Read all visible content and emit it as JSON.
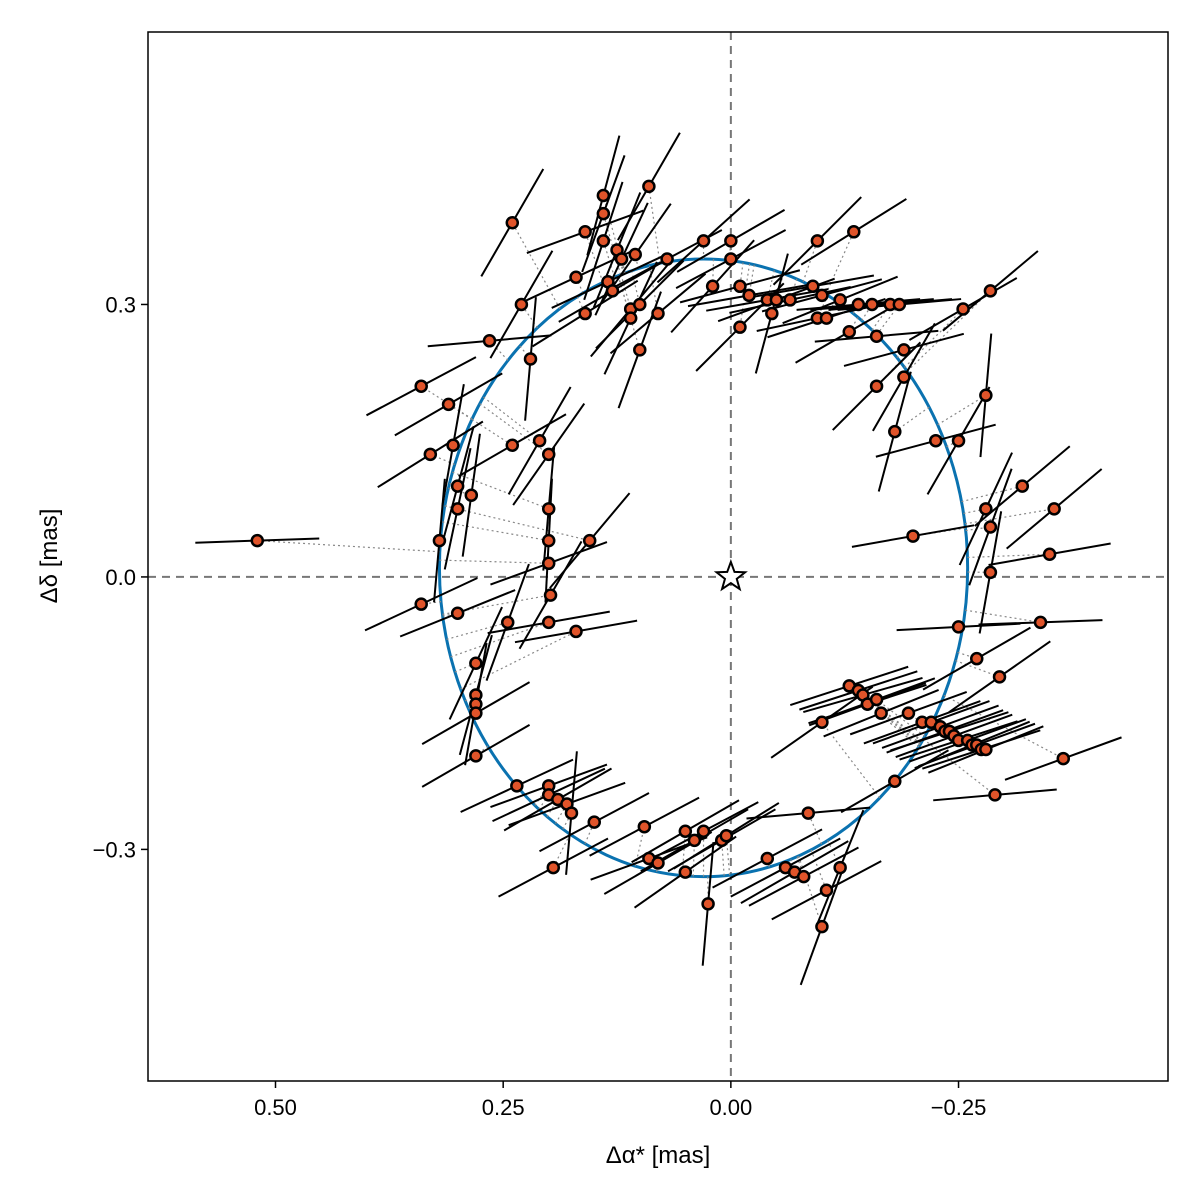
{
  "chart_data": {
    "type": "scatter",
    "title": "",
    "xlabel": "Δα* [mas]",
    "ylabel": "Δδ [mas]",
    "x_reversed": true,
    "xlim": [
      0.64,
      -0.48
    ],
    "ylim": [
      -0.555,
      0.6
    ],
    "x_ticks": [
      {
        "value": 0.5,
        "label": "0.50"
      },
      {
        "value": 0.25,
        "label": "0.25"
      },
      {
        "value": 0.0,
        "label": "0.00"
      },
      {
        "value": -0.25,
        "label": "−0.25"
      }
    ],
    "y_ticks": [
      {
        "value": 0.3,
        "label": "0.3"
      },
      {
        "value": 0.0,
        "label": "0.0"
      },
      {
        "value": -0.3,
        "label": "−0.3"
      }
    ],
    "grid": false,
    "reference_lines": {
      "x": 0.0,
      "y": 0.0,
      "style": "dashed",
      "color": "#777777"
    },
    "star_marker": {
      "x": 0.0,
      "y": 0.0
    },
    "orbit": {
      "cx": 0.03,
      "cy": 0.01,
      "rx": 0.29,
      "ry": 0.34,
      "color": "#0a72b0"
    },
    "series": [
      {
        "marker_color": "#e0542a",
        "marker_edge": "#000000",
        "points": [
          {
            "x": 0.52,
            "y": 0.04,
            "angle": 88
          },
          {
            "x": 0.34,
            "y": 0.21,
            "angle": 62
          },
          {
            "x": 0.33,
            "y": 0.135,
            "angle": 58
          },
          {
            "x": 0.34,
            "y": -0.03,
            "angle": 65
          },
          {
            "x": 0.32,
            "y": 0.04,
            "angle": 5
          },
          {
            "x": 0.31,
            "y": 0.19,
            "angle": 60
          },
          {
            "x": 0.305,
            "y": 0.145,
            "angle": 10
          },
          {
            "x": 0.3,
            "y": 0.1,
            "angle": 15
          },
          {
            "x": 0.3,
            "y": 0.075,
            "angle": 12
          },
          {
            "x": 0.3,
            "y": -0.04,
            "angle": 68
          },
          {
            "x": 0.285,
            "y": 0.09,
            "angle": 8
          },
          {
            "x": 0.28,
            "y": -0.095,
            "angle": 25
          },
          {
            "x": 0.28,
            "y": -0.13,
            "angle": 15
          },
          {
            "x": 0.28,
            "y": -0.14,
            "angle": 10
          },
          {
            "x": 0.28,
            "y": -0.15,
            "angle": 60
          },
          {
            "x": 0.28,
            "y": -0.197,
            "angle": 60
          },
          {
            "x": 0.265,
            "y": 0.26,
            "angle": 85
          },
          {
            "x": 0.24,
            "y": 0.39,
            "angle": 30
          },
          {
            "x": 0.245,
            "y": -0.05,
            "angle": 20
          },
          {
            "x": 0.24,
            "y": 0.145,
            "angle": 60
          },
          {
            "x": 0.235,
            "y": -0.23,
            "angle": 65
          },
          {
            "x": 0.23,
            "y": 0.3,
            "angle": 30
          },
          {
            "x": 0.22,
            "y": 0.24,
            "angle": 5
          },
          {
            "x": 0.21,
            "y": 0.15,
            "angle": 30
          },
          {
            "x": 0.2,
            "y": 0.135,
            "angle": 35
          },
          {
            "x": 0.2,
            "y": 0.075,
            "angle": 5
          },
          {
            "x": 0.2,
            "y": 0.04,
            "angle": 3
          },
          {
            "x": 0.2,
            "y": 0.015,
            "angle": 70
          },
          {
            "x": 0.198,
            "y": -0.02,
            "angle": 30
          },
          {
            "x": 0.2,
            "y": -0.05,
            "angle": 80
          },
          {
            "x": 0.2,
            "y": -0.23,
            "angle": 70
          },
          {
            "x": 0.2,
            "y": -0.24,
            "angle": 65
          },
          {
            "x": 0.19,
            "y": -0.245,
            "angle": 60
          },
          {
            "x": 0.18,
            "y": -0.25,
            "angle": 70
          },
          {
            "x": 0.175,
            "y": -0.26,
            "angle": 5
          },
          {
            "x": 0.195,
            "y": -0.32,
            "angle": 62
          },
          {
            "x": 0.17,
            "y": -0.06,
            "angle": 80
          },
          {
            "x": 0.16,
            "y": 0.29,
            "angle": 58
          },
          {
            "x": 0.17,
            "y": 0.33,
            "angle": 65
          },
          {
            "x": 0.16,
            "y": 0.38,
            "angle": 70
          },
          {
            "x": 0.155,
            "y": 0.04,
            "angle": 40
          },
          {
            "x": 0.15,
            "y": -0.27,
            "angle": 62
          },
          {
            "x": 0.14,
            "y": 0.42,
            "angle": 15
          },
          {
            "x": 0.14,
            "y": 0.4,
            "angle": 20
          },
          {
            "x": 0.14,
            "y": 0.37,
            "angle": 18
          },
          {
            "x": 0.135,
            "y": 0.325,
            "angle": 65
          },
          {
            "x": 0.13,
            "y": 0.315,
            "angle": 60
          },
          {
            "x": 0.125,
            "y": 0.36,
            "angle": 22
          },
          {
            "x": 0.12,
            "y": 0.35,
            "angle": 25
          },
          {
            "x": 0.11,
            "y": 0.295,
            "angle": 40
          },
          {
            "x": 0.11,
            "y": 0.285,
            "angle": 25
          },
          {
            "x": 0.105,
            "y": 0.355,
            "angle": 35
          },
          {
            "x": 0.1,
            "y": 0.25,
            "angle": 20
          },
          {
            "x": 0.1,
            "y": 0.3,
            "angle": 45
          },
          {
            "x": 0.09,
            "y": 0.43,
            "angle": 30
          },
          {
            "x": 0.095,
            "y": -0.275,
            "angle": 62
          },
          {
            "x": 0.09,
            "y": -0.31,
            "angle": 70
          },
          {
            "x": 0.08,
            "y": 0.29,
            "angle": 50
          },
          {
            "x": 0.08,
            "y": -0.315,
            "angle": 60
          },
          {
            "x": 0.07,
            "y": 0.35,
            "angle": 62
          },
          {
            "x": 0.05,
            "y": -0.28,
            "angle": 60
          },
          {
            "x": 0.05,
            "y": -0.325,
            "angle": 55
          },
          {
            "x": 0.04,
            "y": -0.29,
            "angle": 60
          },
          {
            "x": 0.03,
            "y": 0.37,
            "angle": 48
          },
          {
            "x": 0.03,
            "y": -0.28,
            "angle": 62
          },
          {
            "x": 0.025,
            "y": -0.36,
            "angle": 5
          },
          {
            "x": 0.02,
            "y": 0.32,
            "angle": 42
          },
          {
            "x": 0.01,
            "y": -0.29,
            "angle": 60
          },
          {
            "x": 0.005,
            "y": -0.285,
            "angle": 58
          },
          {
            "x": 0.0,
            "y": 0.37,
            "angle": 60
          },
          {
            "x": 0.0,
            "y": 0.35,
            "angle": 62
          },
          {
            "x": -0.01,
            "y": 0.32,
            "angle": 75
          },
          {
            "x": -0.01,
            "y": 0.275,
            "angle": 45
          },
          {
            "x": -0.02,
            "y": 0.31,
            "angle": 80
          },
          {
            "x": -0.04,
            "y": 0.305,
            "angle": 80
          },
          {
            "x": -0.04,
            "y": -0.31,
            "angle": 62
          },
          {
            "x": -0.045,
            "y": 0.29,
            "angle": 15
          },
          {
            "x": -0.05,
            "y": 0.305,
            "angle": 70
          },
          {
            "x": -0.06,
            "y": -0.32,
            "angle": 62
          },
          {
            "x": -0.065,
            "y": 0.305,
            "angle": 78
          },
          {
            "x": -0.07,
            "y": -0.325,
            "angle": 60
          },
          {
            "x": -0.08,
            "y": -0.33,
            "angle": 62
          },
          {
            "x": -0.085,
            "y": -0.26,
            "angle": 85
          },
          {
            "x": -0.09,
            "y": 0.32,
            "angle": 80
          },
          {
            "x": -0.095,
            "y": 0.37,
            "angle": 45
          },
          {
            "x": -0.095,
            "y": 0.285,
            "angle": 78
          },
          {
            "x": -0.105,
            "y": 0.285,
            "angle": 72
          },
          {
            "x": -0.105,
            "y": -0.345,
            "angle": 62
          },
          {
            "x": -0.1,
            "y": 0.31,
            "angle": 75
          },
          {
            "x": -0.1,
            "y": -0.16,
            "angle": 55
          },
          {
            "x": -0.1,
            "y": -0.385,
            "angle": 20
          },
          {
            "x": -0.12,
            "y": 0.305,
            "angle": 68
          },
          {
            "x": -0.12,
            "y": -0.32,
            "angle": 22
          },
          {
            "x": -0.13,
            "y": 0.27,
            "angle": 60
          },
          {
            "x": -0.13,
            "y": -0.12,
            "angle": 72
          },
          {
            "x": -0.135,
            "y": 0.38,
            "angle": 58
          },
          {
            "x": -0.14,
            "y": -0.125,
            "angle": 72
          },
          {
            "x": -0.14,
            "y": 0.3,
            "angle": 85
          },
          {
            "x": -0.145,
            "y": -0.13,
            "angle": 74
          },
          {
            "x": -0.15,
            "y": -0.14,
            "angle": 72
          },
          {
            "x": -0.15,
            "y": -0.14,
            "angle": 70
          },
          {
            "x": -0.155,
            "y": 0.3,
            "angle": 85
          },
          {
            "x": -0.16,
            "y": -0.135,
            "angle": 70
          },
          {
            "x": -0.16,
            "y": 0.21,
            "angle": 45
          },
          {
            "x": -0.16,
            "y": 0.265,
            "angle": 85
          },
          {
            "x": -0.165,
            "y": -0.15,
            "angle": 68
          },
          {
            "x": -0.175,
            "y": 0.3,
            "angle": 85
          },
          {
            "x": -0.18,
            "y": 0.16,
            "angle": 15
          },
          {
            "x": -0.18,
            "y": -0.225,
            "angle": 60
          },
          {
            "x": -0.185,
            "y": 0.3,
            "angle": 85
          },
          {
            "x": -0.19,
            "y": 0.25,
            "angle": 75
          },
          {
            "x": -0.19,
            "y": 0.22,
            "angle": 30
          },
          {
            "x": -0.195,
            "y": -0.15,
            "angle": 70
          },
          {
            "x": -0.2,
            "y": 0.045,
            "angle": 80
          },
          {
            "x": -0.21,
            "y": -0.16,
            "angle": 70
          },
          {
            "x": -0.22,
            "y": -0.16,
            "angle": 70
          },
          {
            "x": -0.225,
            "y": 0.15,
            "angle": 75
          },
          {
            "x": -0.23,
            "y": -0.165,
            "angle": 70
          },
          {
            "x": -0.235,
            "y": -0.17,
            "angle": 70
          },
          {
            "x": -0.24,
            "y": -0.17,
            "angle": 72
          },
          {
            "x": -0.245,
            "y": -0.175,
            "angle": 70
          },
          {
            "x": -0.25,
            "y": 0.15,
            "angle": 30
          },
          {
            "x": -0.25,
            "y": -0.055,
            "angle": 87
          },
          {
            "x": -0.25,
            "y": -0.18,
            "angle": 72
          },
          {
            "x": -0.255,
            "y": 0.295,
            "angle": 60
          },
          {
            "x": -0.26,
            "y": -0.18,
            "angle": 70
          },
          {
            "x": -0.265,
            "y": -0.185,
            "angle": 68
          },
          {
            "x": -0.27,
            "y": -0.09,
            "angle": 60
          },
          {
            "x": -0.27,
            "y": -0.185,
            "angle": 70
          },
          {
            "x": -0.275,
            "y": -0.19,
            "angle": 72
          },
          {
            "x": -0.28,
            "y": 0.075,
            "angle": 25
          },
          {
            "x": -0.28,
            "y": 0.2,
            "angle": 5
          },
          {
            "x": -0.28,
            "y": -0.19,
            "angle": 68
          },
          {
            "x": -0.285,
            "y": 0.055,
            "angle": 20
          },
          {
            "x": -0.285,
            "y": 0.005,
            "angle": 10
          },
          {
            "x": -0.285,
            "y": 0.315,
            "angle": 50
          },
          {
            "x": -0.29,
            "y": -0.24,
            "angle": 85
          },
          {
            "x": -0.295,
            "y": -0.11,
            "angle": 55
          },
          {
            "x": -0.32,
            "y": 0.1,
            "angle": 50
          },
          {
            "x": -0.34,
            "y": -0.05,
            "angle": 88
          },
          {
            "x": -0.35,
            "y": 0.025,
            "angle": 80
          },
          {
            "x": -0.355,
            "y": 0.075,
            "angle": 50
          },
          {
            "x": -0.365,
            "y": -0.2,
            "angle": 70
          }
        ]
      }
    ]
  }
}
